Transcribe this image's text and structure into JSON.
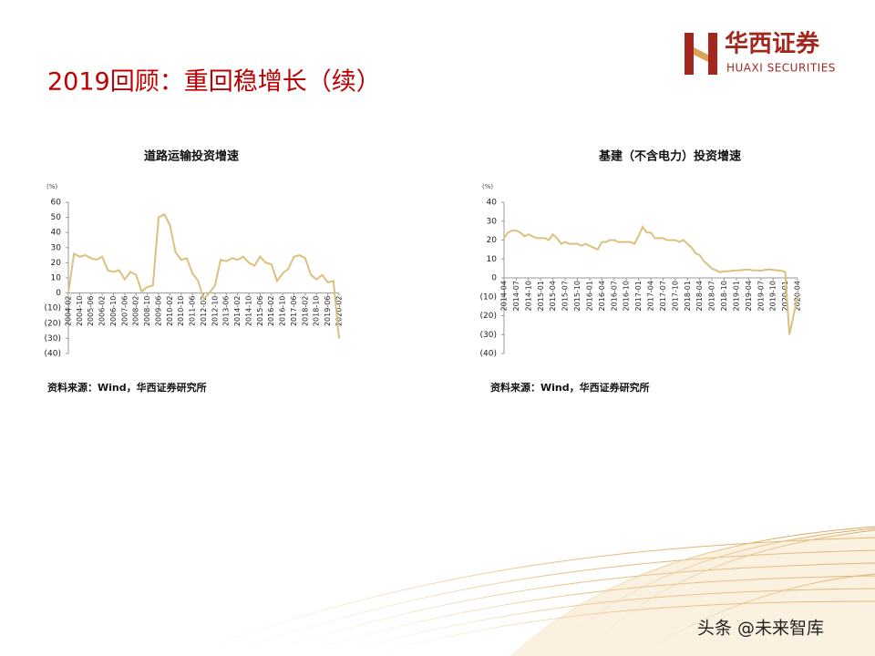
{
  "header": {
    "title": "2019回顾：重回稳增长（续）",
    "logo_cn": "华西证券",
    "logo_en": "HUAXI SECURITIES"
  },
  "footer": {
    "watermark": "头条 @未来智库"
  },
  "chart_data": [
    {
      "type": "line",
      "title": "道路运输投资增速",
      "y_unit": "(%)",
      "source": "资料来源：Wind，华西证券研究所",
      "color": "#dcc07c",
      "ylim": [
        -40,
        60
      ],
      "yticks": [
        60,
        50,
        40,
        30,
        20,
        10,
        0,
        {
          "value": -10,
          "label": "(10)"
        },
        {
          "value": -20,
          "label": "(20)"
        },
        {
          "value": -30,
          "label": "(30)"
        },
        {
          "value": -40,
          "label": "(40)"
        }
      ],
      "categories": [
        "2004-02",
        null,
        "2004-10",
        null,
        "2005-06",
        null,
        "2006-02",
        null,
        "2006-10",
        null,
        "2007-06",
        null,
        "2008-02",
        null,
        "2008-10",
        null,
        "2009-06",
        null,
        "2010-02",
        null,
        "2010-10",
        null,
        "2011-06",
        null,
        "2012-02",
        null,
        "2012-10",
        null,
        "2013-06",
        null,
        "2014-02",
        null,
        "2014-10",
        null,
        "2015-06",
        null,
        "2016-02",
        null,
        "2016-10",
        null,
        "2017-06",
        null,
        "2018-02",
        null,
        "2018-10",
        null,
        "2019-06",
        null,
        "2020-02"
      ],
      "values": [
        0,
        26,
        24,
        25,
        23,
        22,
        24,
        15,
        14,
        15,
        9,
        14,
        12,
        1,
        4,
        5,
        50,
        52,
        45,
        27,
        22,
        23,
        13,
        8,
        -4,
        0,
        5,
        22,
        21,
        23,
        22,
        24,
        20,
        18,
        24,
        20,
        19,
        8,
        13,
        16,
        24,
        25,
        23,
        12,
        9,
        12,
        7,
        8,
        -30
      ]
    },
    {
      "type": "line",
      "title": "基建（不含电力）投资增速",
      "y_unit": "(%)",
      "source": "资料来源：Wind，华西证券研究所",
      "color": "#dcc07c",
      "ylim": [
        -40,
        40
      ],
      "yticks": [
        40,
        30,
        20,
        10,
        0,
        {
          "value": -10,
          "label": "(10)"
        },
        {
          "value": -20,
          "label": "(20)"
        },
        {
          "value": -30,
          "label": "(30)"
        },
        {
          "value": -40,
          "label": "(40)"
        }
      ],
      "categories": [
        "2014-04",
        null,
        null,
        "2014-07",
        null,
        null,
        "2014-10",
        null,
        null,
        "2015-01",
        null,
        null,
        "2015-04",
        null,
        null,
        "2015-07",
        null,
        null,
        "2015-10",
        null,
        null,
        "2016-01",
        null,
        null,
        "2016-04",
        null,
        null,
        "2016-07",
        null,
        null,
        "2016-10",
        null,
        null,
        "2017-01",
        null,
        null,
        "2017-04",
        null,
        null,
        "2017-07",
        null,
        null,
        "2017-10",
        null,
        null,
        "2018-01",
        null,
        null,
        "2018-04",
        null,
        null,
        "2018-07",
        null,
        null,
        "2018-10",
        null,
        null,
        "2019-01",
        null,
        null,
        "2019-04",
        null,
        null,
        "2019-07",
        null,
        null,
        "2019-10",
        null,
        null,
        "2020-01",
        null,
        null,
        "2020-04"
      ],
      "values": [
        21,
        24,
        25,
        25,
        24,
        22,
        23,
        22,
        21,
        21,
        21,
        20,
        23,
        21,
        18,
        19,
        18,
        18,
        18,
        17,
        18,
        17,
        16,
        15,
        19,
        19,
        20,
        20,
        19,
        19,
        19,
        19,
        18,
        22,
        27,
        24,
        24,
        21,
        21,
        21,
        20,
        20,
        20,
        19,
        20,
        18,
        16,
        13,
        12,
        9,
        7,
        5,
        4,
        3,
        3.5,
        3.5,
        3.8,
        4,
        4,
        4.4,
        4.4,
        4,
        4,
        3.8,
        4.2,
        4.5,
        4.2,
        4,
        3.8,
        3,
        -30,
        -20,
        -10
      ]
    }
  ]
}
